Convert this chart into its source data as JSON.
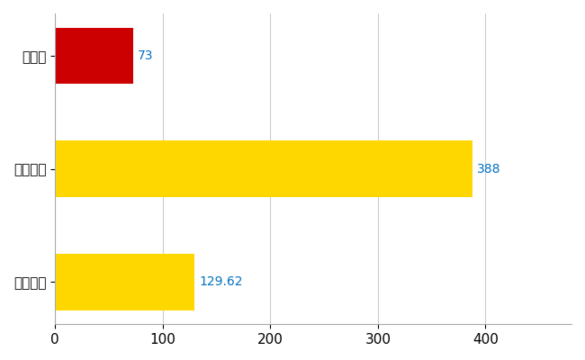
{
  "categories": [
    "全国平均",
    "全国最大",
    "奈良県"
  ],
  "values": [
    129.62,
    388,
    73
  ],
  "bar_colors": [
    "#FFD700",
    "#FFD700",
    "#CC0000"
  ],
  "label_values": [
    "129.62",
    "388",
    "73"
  ],
  "xlim": [
    0,
    480
  ],
  "background_color": "#FFFFFF",
  "grid_color": "#CCCCCC",
  "label_color": "#0070C0",
  "bar_height": 0.5,
  "tick_label_fontsize": 11,
  "value_label_fontsize": 10
}
